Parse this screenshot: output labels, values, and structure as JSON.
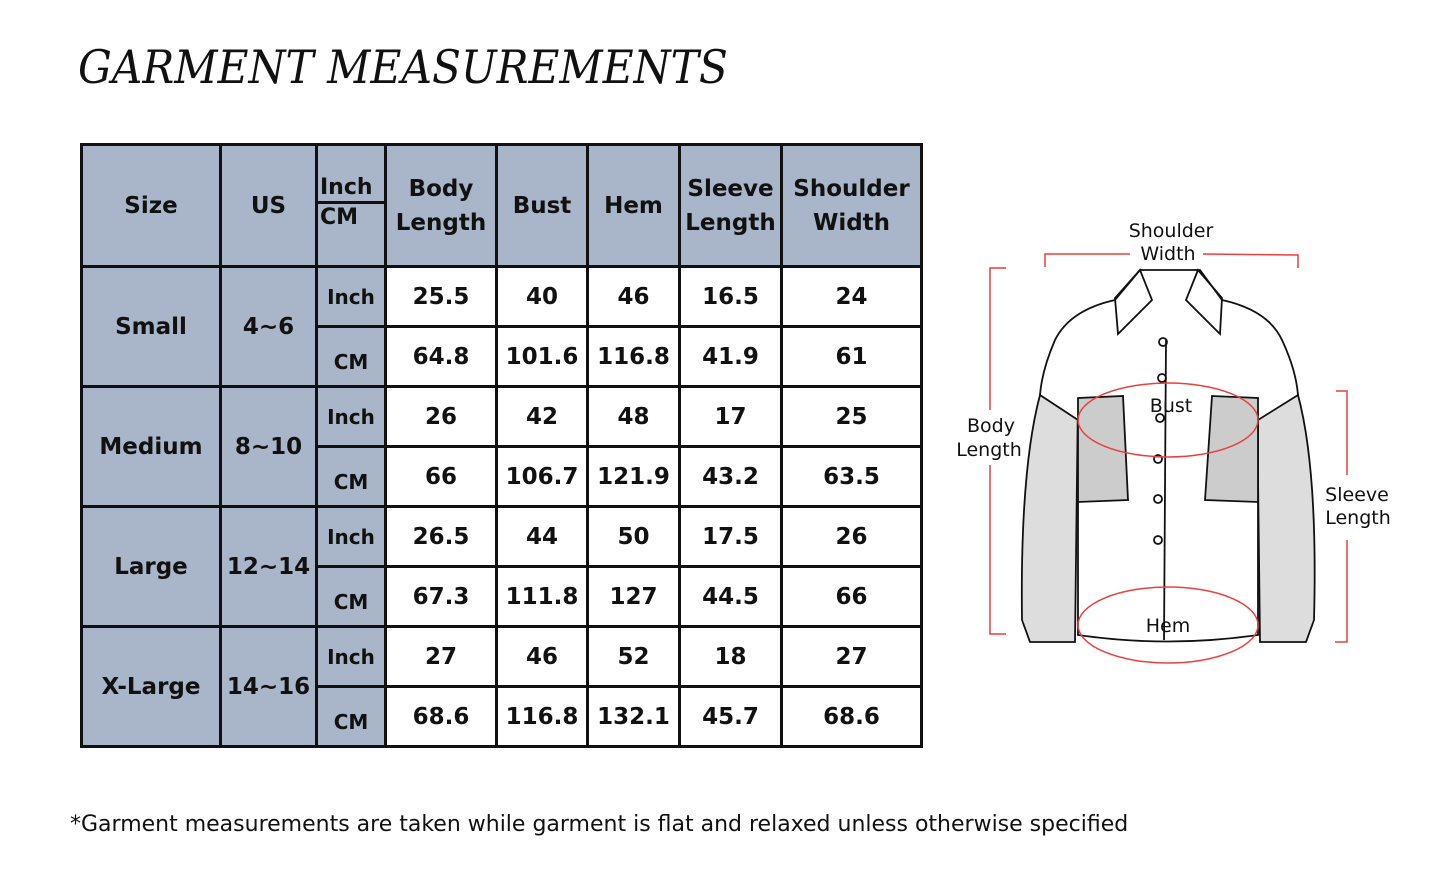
{
  "title": "GARMENT MEASUREMENTS",
  "table": {
    "headers": [
      "Size",
      "US",
      "Inch",
      "CM",
      "Body Length",
      "Bust",
      "Hem",
      "Sleeve Length",
      "Shoulder Width"
    ],
    "rows": [
      {
        "size": "Small",
        "us": "4~6",
        "inch": [
          "25.5",
          "40",
          "46",
          "16.5",
          "24"
        ],
        "cm": [
          "64.8",
          "101.6",
          "116.8",
          "41.9",
          "61"
        ]
      },
      {
        "size": "Medium",
        "us": "8~10",
        "inch": [
          "26",
          "42",
          "48",
          "17",
          "25"
        ],
        "cm": [
          "66",
          "106.7",
          "121.9",
          "43.2",
          "63.5"
        ]
      },
      {
        "size": "Large",
        "us": "12~14",
        "inch": [
          "26.5",
          "44",
          "50",
          "17.5",
          "26"
        ],
        "cm": [
          "67.3",
          "111.8",
          "127",
          "44.5",
          "66"
        ]
      },
      {
        "size": "X-Large",
        "us": "14~16",
        "inch": [
          "27",
          "46",
          "52",
          "18",
          "27"
        ],
        "cm": [
          "68.6",
          "116.8",
          "132.1",
          "45.7",
          "68.6"
        ]
      }
    ],
    "unit_inch": "Inch",
    "unit_cm": "CM"
  },
  "diagram": {
    "shoulder1": "Shoulder",
    "shoulder2": "Width",
    "body1": "Body",
    "body2": "Length",
    "sleeve1": "Sleeve",
    "sleeve2": "Length",
    "bust": "Bust",
    "hem": "Hem",
    "accent": "#e8403f"
  },
  "note": "*Garment measurements are taken while garment is flat and relaxed unless otherwise specified"
}
